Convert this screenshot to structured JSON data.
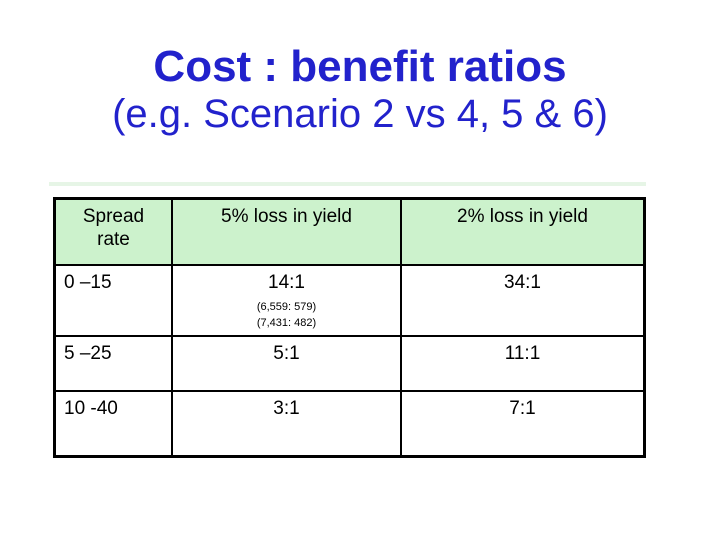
{
  "slide": {
    "title": "Cost : benefit ratios",
    "subtitle": "(e.g. Scenario 2 vs 4, 5 & 6)"
  },
  "colors": {
    "title_blue": "#2222CC",
    "header_green": "#CCF2CC",
    "table_border": "#000000",
    "background": "#FFFFFF"
  },
  "table": {
    "headers": [
      "Spread rate",
      "5% loss in yield",
      "2% loss in yield"
    ],
    "rows": [
      {
        "spread": "0 –15",
        "ratio5": "14:1",
        "notes": [
          "(6,559: 579)",
          "(7,431: 482)"
        ],
        "ratio2": "34:1"
      },
      {
        "spread": "5 –25",
        "ratio5": "5:1",
        "ratio2": "11:1"
      },
      {
        "spread": "10 -40",
        "ratio5": "3:1",
        "ratio2": "7:1"
      }
    ]
  }
}
